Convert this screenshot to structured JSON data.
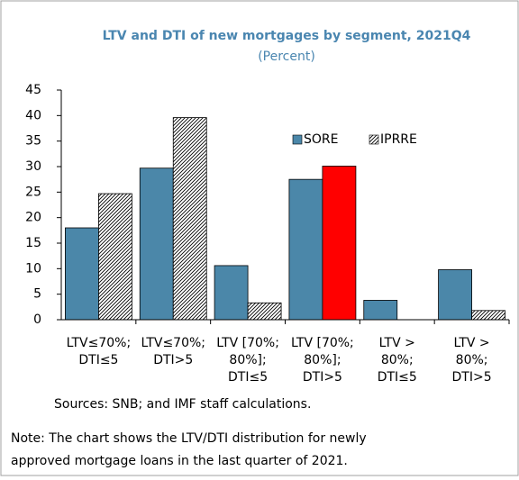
{
  "chart_data": {
    "type": "bar",
    "title": "LTV and DTI of new mortgages by segment, 2021Q4",
    "subtitle": "(Percent)",
    "categories": [
      [
        "LTV≤70%;",
        "DTI≤5"
      ],
      [
        "LTV≤70%;",
        "DTI>5"
      ],
      [
        "LTV [70%;",
        "80%];",
        "DTI≤5"
      ],
      [
        "LTV [70%;",
        "80%];",
        "DTI>5"
      ],
      [
        "LTV >",
        "80%;",
        "DTI≤5"
      ],
      [
        "LTV >",
        "80%;",
        "DTI>5"
      ]
    ],
    "series": [
      {
        "name": "SORE",
        "color": "#4b87a9",
        "values": [
          18,
          29.7,
          10.6,
          27.5,
          3.8,
          9.8
        ]
      },
      {
        "name": "IPRRE",
        "color": "hatch",
        "values": [
          24.7,
          39.6,
          3.3,
          30.1,
          0,
          1.8
        ]
      }
    ],
    "highlight": {
      "series": 1,
      "index": 3,
      "color": "#ff0000"
    },
    "ylim": [
      0,
      45
    ],
    "yticks": [
      0,
      5,
      10,
      15,
      20,
      25,
      30,
      35,
      40,
      45
    ],
    "legend": "top-right",
    "source": "Sources: SNB; and IMF staff calculations.",
    "note": [
      "Note: The chart shows the LTV/DTI distribution for newly",
      "approved mortgage loans in the last quarter of 2021."
    ]
  }
}
